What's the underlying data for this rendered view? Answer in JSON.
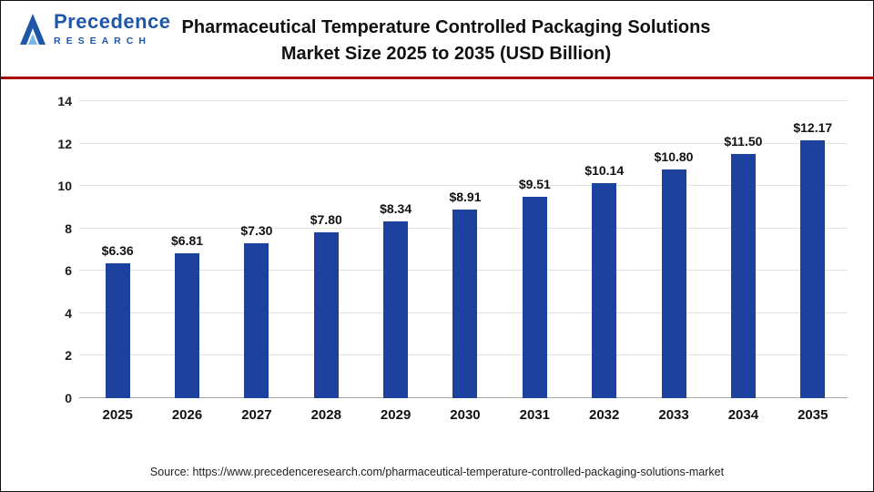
{
  "header": {
    "logo": {
      "name": "Precedence",
      "sub": "RESEARCH"
    },
    "title_line1": "Pharmaceutical Temperature Controlled Packaging Solutions",
    "title_line2": "Market Size 2025 to 2035 (USD Billion)"
  },
  "footer": {
    "source": "Source: https://www.precedenceresearch.com/pharmaceutical-temperature-controlled-packaging-solutions-market"
  },
  "chart_data": {
    "type": "bar",
    "title": "Pharmaceutical Temperature Controlled Packaging Solutions Market Size 2025 to 2035 (USD Billion)",
    "categories": [
      "2025",
      "2026",
      "2027",
      "2028",
      "2029",
      "2030",
      "2031",
      "2032",
      "2033",
      "2034",
      "2035"
    ],
    "values": [
      6.36,
      6.81,
      7.3,
      7.8,
      8.34,
      8.91,
      9.51,
      10.14,
      10.8,
      11.5,
      12.17
    ],
    "value_labels": [
      "$6.36",
      "$6.81",
      "$7.30",
      "$7.80",
      "$8.34",
      "$8.91",
      "$9.51",
      "$10.14",
      "$10.80",
      "$11.50",
      "$12.17"
    ],
    "xlabel": "",
    "ylabel": "",
    "ylim": [
      0,
      14
    ],
    "yticks": [
      0,
      2,
      4,
      6,
      8,
      10,
      12,
      14
    ],
    "bar_color": "#1d419f",
    "grid": true,
    "legend_position": "none"
  }
}
